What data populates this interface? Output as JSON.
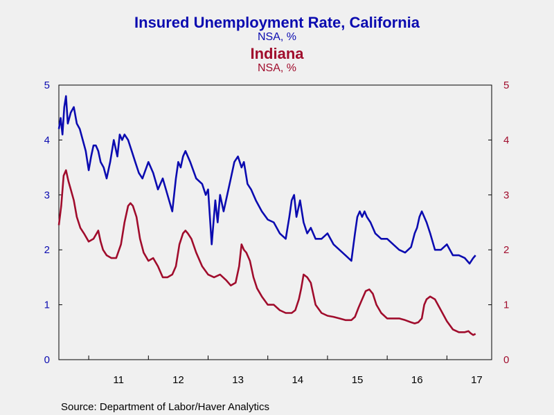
{
  "colors": {
    "california": "#0b0bb0",
    "indiana": "#a00c2c",
    "frame": "#000000",
    "background": "#f0f0f0"
  },
  "titles": {
    "california_title": "Insured Unemployment Rate, California",
    "california_sub": "NSA, %",
    "indiana_title": "Indiana",
    "indiana_sub": "NSA, %"
  },
  "source": "Source:  Department of Labor/Haver Analytics",
  "chart_data": {
    "type": "line",
    "x_tick_labels": [
      "11",
      "12",
      "13",
      "14",
      "15",
      "16",
      "17"
    ],
    "xlim": [
      2010.5,
      2017.75
    ],
    "left_axis": {
      "ylim": [
        0,
        5
      ],
      "ticks": [
        "0",
        "1",
        "2",
        "3",
        "4",
        "5"
      ]
    },
    "right_axis": {
      "ylim": [
        0,
        5
      ],
      "ticks": [
        "0",
        "1",
        "2",
        "3",
        "4",
        "5"
      ]
    },
    "grid": false,
    "series": [
      {
        "name": "California",
        "axis": "left",
        "x": [
          2010.5,
          2010.53,
          2010.56,
          2010.59,
          2010.62,
          2010.65,
          2010.7,
          2010.75,
          2010.8,
          2010.85,
          2010.9,
          2010.95,
          2011.0,
          2011.04,
          2011.08,
          2011.12,
          2011.16,
          2011.2,
          2011.25,
          2011.3,
          2011.36,
          2011.42,
          2011.48,
          2011.52,
          2011.56,
          2011.6,
          2011.66,
          2011.72,
          2011.78,
          2011.84,
          2011.9,
          2012.0,
          2012.08,
          2012.16,
          2012.24,
          2012.32,
          2012.4,
          2012.46,
          2012.5,
          2012.54,
          2012.58,
          2012.62,
          2012.7,
          2012.8,
          2012.9,
          2012.96,
          2013.0,
          2013.06,
          2013.12,
          2013.16,
          2013.2,
          2013.26,
          2013.32,
          2013.38,
          2013.44,
          2013.5,
          2013.56,
          2013.6,
          2013.66,
          2013.72,
          2013.8,
          2013.9,
          2014.0,
          2014.1,
          2014.2,
          2014.3,
          2014.36,
          2014.4,
          2014.44,
          2014.48,
          2014.54,
          2014.6,
          2014.66,
          2014.72,
          2014.8,
          2014.9,
          2015.0,
          2015.1,
          2015.2,
          2015.3,
          2015.4,
          2015.46,
          2015.5,
          2015.54,
          2015.58,
          2015.62,
          2015.66,
          2015.72,
          2015.8,
          2015.9,
          2016.0,
          2016.1,
          2016.2,
          2016.3,
          2016.4,
          2016.46,
          2016.5,
          2016.54,
          2016.58,
          2016.62,
          2016.66,
          2016.72,
          2016.8,
          2016.9,
          2017.0,
          2017.1,
          2017.2,
          2017.3,
          2017.38,
          2017.44,
          2017.48
        ],
        "values": [
          4.2,
          4.4,
          4.1,
          4.6,
          4.8,
          4.3,
          4.5,
          4.6,
          4.3,
          4.2,
          4.0,
          3.8,
          3.45,
          3.7,
          3.9,
          3.9,
          3.8,
          3.6,
          3.5,
          3.3,
          3.6,
          4.0,
          3.7,
          4.1,
          4.0,
          4.1,
          4.0,
          3.8,
          3.6,
          3.4,
          3.3,
          3.6,
          3.4,
          3.1,
          3.3,
          3.0,
          2.7,
          3.3,
          3.6,
          3.5,
          3.7,
          3.8,
          3.6,
          3.3,
          3.2,
          3.0,
          3.1,
          2.1,
          2.9,
          2.5,
          3.0,
          2.7,
          3.0,
          3.3,
          3.6,
          3.7,
          3.5,
          3.6,
          3.2,
          3.1,
          2.9,
          2.7,
          2.55,
          2.5,
          2.3,
          2.2,
          2.6,
          2.9,
          3.0,
          2.6,
          2.9,
          2.5,
          2.3,
          2.4,
          2.2,
          2.2,
          2.3,
          2.1,
          2.0,
          1.9,
          1.8,
          2.3,
          2.6,
          2.7,
          2.6,
          2.7,
          2.6,
          2.5,
          2.3,
          2.2,
          2.2,
          2.1,
          2.0,
          1.95,
          2.05,
          2.3,
          2.4,
          2.6,
          2.7,
          2.6,
          2.5,
          2.3,
          2.0,
          2.0,
          2.1,
          1.9,
          1.9,
          1.85,
          1.75,
          1.85,
          1.9
        ]
      },
      {
        "name": "Indiana",
        "axis": "right",
        "x": [
          2010.5,
          2010.54,
          2010.58,
          2010.62,
          2010.66,
          2010.7,
          2010.75,
          2010.8,
          2010.86,
          2010.92,
          2011.0,
          2011.08,
          2011.16,
          2011.2,
          2011.24,
          2011.3,
          2011.38,
          2011.46,
          2011.54,
          2011.6,
          2011.66,
          2011.7,
          2011.74,
          2011.8,
          2011.86,
          2011.92,
          2012.0,
          2012.08,
          2012.16,
          2012.24,
          2012.32,
          2012.4,
          2012.46,
          2012.52,
          2012.58,
          2012.62,
          2012.66,
          2012.72,
          2012.8,
          2012.9,
          2013.0,
          2013.1,
          2013.2,
          2013.3,
          2013.38,
          2013.46,
          2013.52,
          2013.56,
          2013.6,
          2013.64,
          2013.7,
          2013.76,
          2013.82,
          2013.9,
          2014.0,
          2014.1,
          2014.2,
          2014.3,
          2014.4,
          2014.46,
          2014.52,
          2014.56,
          2014.6,
          2014.66,
          2014.72,
          2014.8,
          2014.9,
          2015.0,
          2015.1,
          2015.2,
          2015.3,
          2015.4,
          2015.46,
          2015.52,
          2015.58,
          2015.64,
          2015.7,
          2015.76,
          2015.82,
          2015.9,
          2016.0,
          2016.1,
          2016.2,
          2016.3,
          2016.4,
          2016.46,
          2016.52,
          2016.58,
          2016.62,
          2016.66,
          2016.72,
          2016.8,
          2016.9,
          2017.0,
          2017.1,
          2017.2,
          2017.3,
          2017.36,
          2017.4,
          2017.44,
          2017.48
        ],
        "values": [
          2.45,
          2.8,
          3.35,
          3.45,
          3.25,
          3.1,
          2.9,
          2.6,
          2.4,
          2.3,
          2.15,
          2.2,
          2.35,
          2.15,
          2.0,
          1.9,
          1.85,
          1.85,
          2.1,
          2.5,
          2.8,
          2.85,
          2.8,
          2.6,
          2.2,
          1.95,
          1.8,
          1.85,
          1.7,
          1.5,
          1.5,
          1.55,
          1.7,
          2.1,
          2.3,
          2.35,
          2.3,
          2.2,
          1.95,
          1.7,
          1.55,
          1.5,
          1.55,
          1.45,
          1.35,
          1.4,
          1.7,
          2.1,
          2.0,
          1.95,
          1.8,
          1.5,
          1.3,
          1.15,
          1.0,
          1.0,
          0.9,
          0.85,
          0.85,
          0.9,
          1.1,
          1.3,
          1.55,
          1.5,
          1.4,
          1.0,
          0.85,
          0.8,
          0.78,
          0.75,
          0.72,
          0.72,
          0.78,
          0.95,
          1.1,
          1.25,
          1.28,
          1.2,
          1.0,
          0.85,
          0.75,
          0.75,
          0.75,
          0.72,
          0.68,
          0.66,
          0.68,
          0.75,
          1.0,
          1.1,
          1.15,
          1.1,
          0.9,
          0.7,
          0.55,
          0.5,
          0.5,
          0.52,
          0.48,
          0.45,
          0.47
        ]
      }
    ]
  }
}
